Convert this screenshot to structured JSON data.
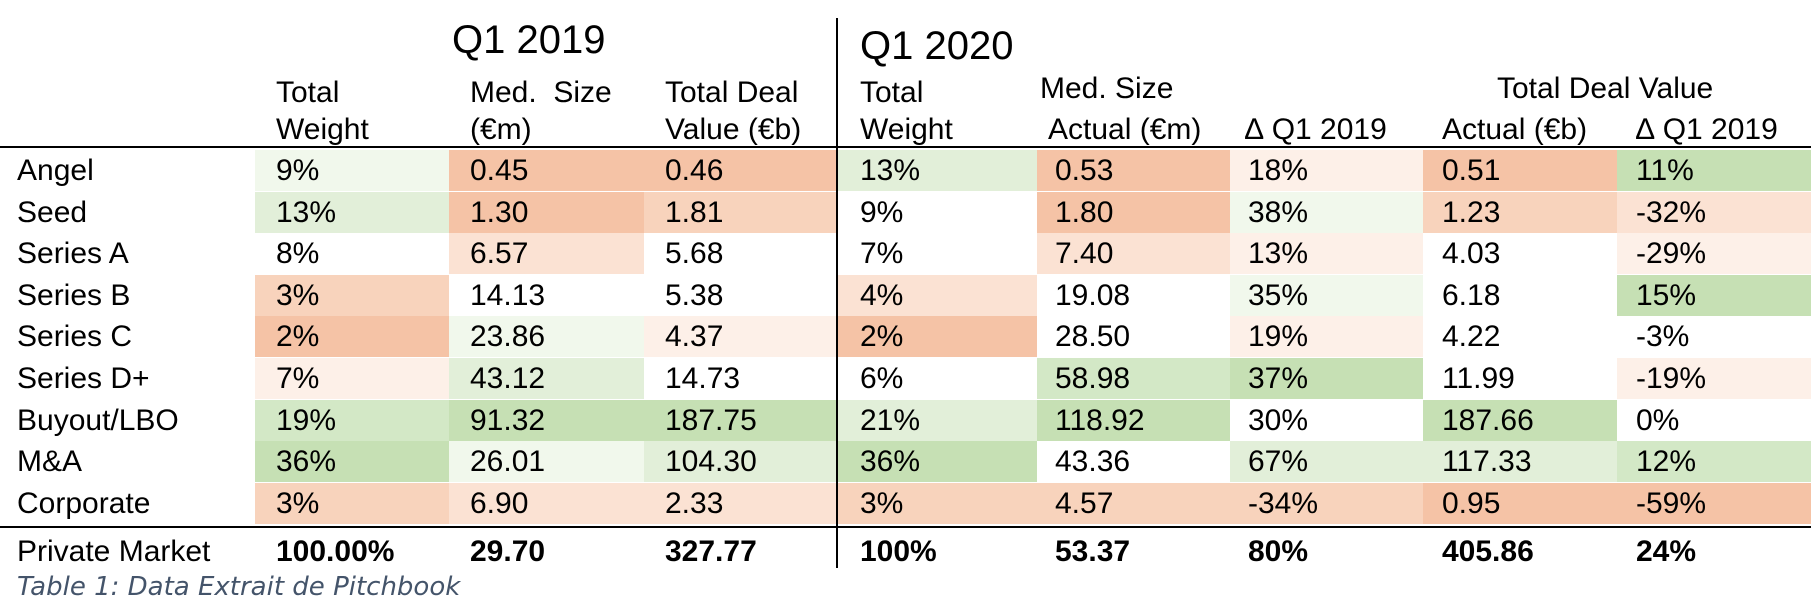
{
  "headers": {
    "q1_2019": "Q1 2019",
    "q1_2020": "Q1 2020",
    "weight_l1": "Total",
    "weight_l2": "Weight",
    "med_size_2019_l1": "Med.  Size",
    "med_size_2019_l2": "(€m)",
    "deal_value_2019_l1": "Total Deal",
    "deal_value_2019_l2": "Value (€b)",
    "med_size_2020": "Med. Size",
    "deal_value_2020": "Total Deal Value",
    "actual_m": "Actual (€m)",
    "delta_1": "∆ Q1 2019",
    "actual_b": "Actual (€b)",
    "delta_2": "∆ Q1 2019"
  },
  "rows": [
    {
      "label": "Angel",
      "w19": "9%",
      "ms19": "0.45",
      "dv19": "0.46",
      "w20": "13%",
      "ms20": "0.53",
      "dms": "18%",
      "dv20": "0.51",
      "ddv": "11%"
    },
    {
      "label": "Seed",
      "w19": "13%",
      "ms19": "1.30",
      "dv19": "1.81",
      "w20": "9%",
      "ms20": "1.80",
      "dms": "38%",
      "dv20": "1.23",
      "ddv": "-32%"
    },
    {
      "label": "Series A",
      "w19": "8%",
      "ms19": "6.57",
      "dv19": "5.68",
      "w20": "7%",
      "ms20": "7.40",
      "dms": "13%",
      "dv20": "4.03",
      "ddv": "-29%"
    },
    {
      "label": "Series B",
      "w19": "3%",
      "ms19": "14.13",
      "dv19": "5.38",
      "w20": "4%",
      "ms20": "19.08",
      "dms": "35%",
      "dv20": "6.18",
      "ddv": "15%"
    },
    {
      "label": "Series C",
      "w19": "2%",
      "ms19": "23.86",
      "dv19": "4.37",
      "w20": "2%",
      "ms20": "28.50",
      "dms": "19%",
      "dv20": "4.22",
      "ddv": "-3%"
    },
    {
      "label": "Series D+",
      "w19": "7%",
      "ms19": "43.12",
      "dv19": "14.73",
      "w20": "6%",
      "ms20": "58.98",
      "dms": "37%",
      "dv20": "11.99",
      "ddv": "-19%"
    },
    {
      "label": "Buyout/LBO",
      "w19": "19%",
      "ms19": "91.32",
      "dv19": "187.75",
      "w20": "21%",
      "ms20": "118.92",
      "dms": "30%",
      "dv20": "187.66",
      "ddv": "0%"
    },
    {
      "label": "M&A",
      "w19": "36%",
      "ms19": "26.01",
      "dv19": "104.30",
      "w20": "36%",
      "ms20": "43.36",
      "dms": "67%",
      "dv20": "117.33",
      "ddv": "12%"
    },
    {
      "label": "Corporate",
      "w19": "3%",
      "ms19": "6.90",
      "dv19": "2.33",
      "w20": "3%",
      "ms20": "4.57",
      "dms": "-34%",
      "dv20": "0.95",
      "ddv": "-59%"
    }
  ],
  "total": {
    "label": "Private Market",
    "w19": "100.00%",
    "ms19": "29.70",
    "dv19": "327.77",
    "w20": "100%",
    "ms20": "53.37",
    "dms": "80%",
    "dv20": "405.86",
    "ddv": "24%"
  },
  "caption": "Table 1: Data Extrait de Pitchbook",
  "colors": {
    "heat_low": "#f5c3a6",
    "heat_mid": "#ffffff",
    "heat_high": "#c6e0b4",
    "caption": "#44546a"
  }
}
